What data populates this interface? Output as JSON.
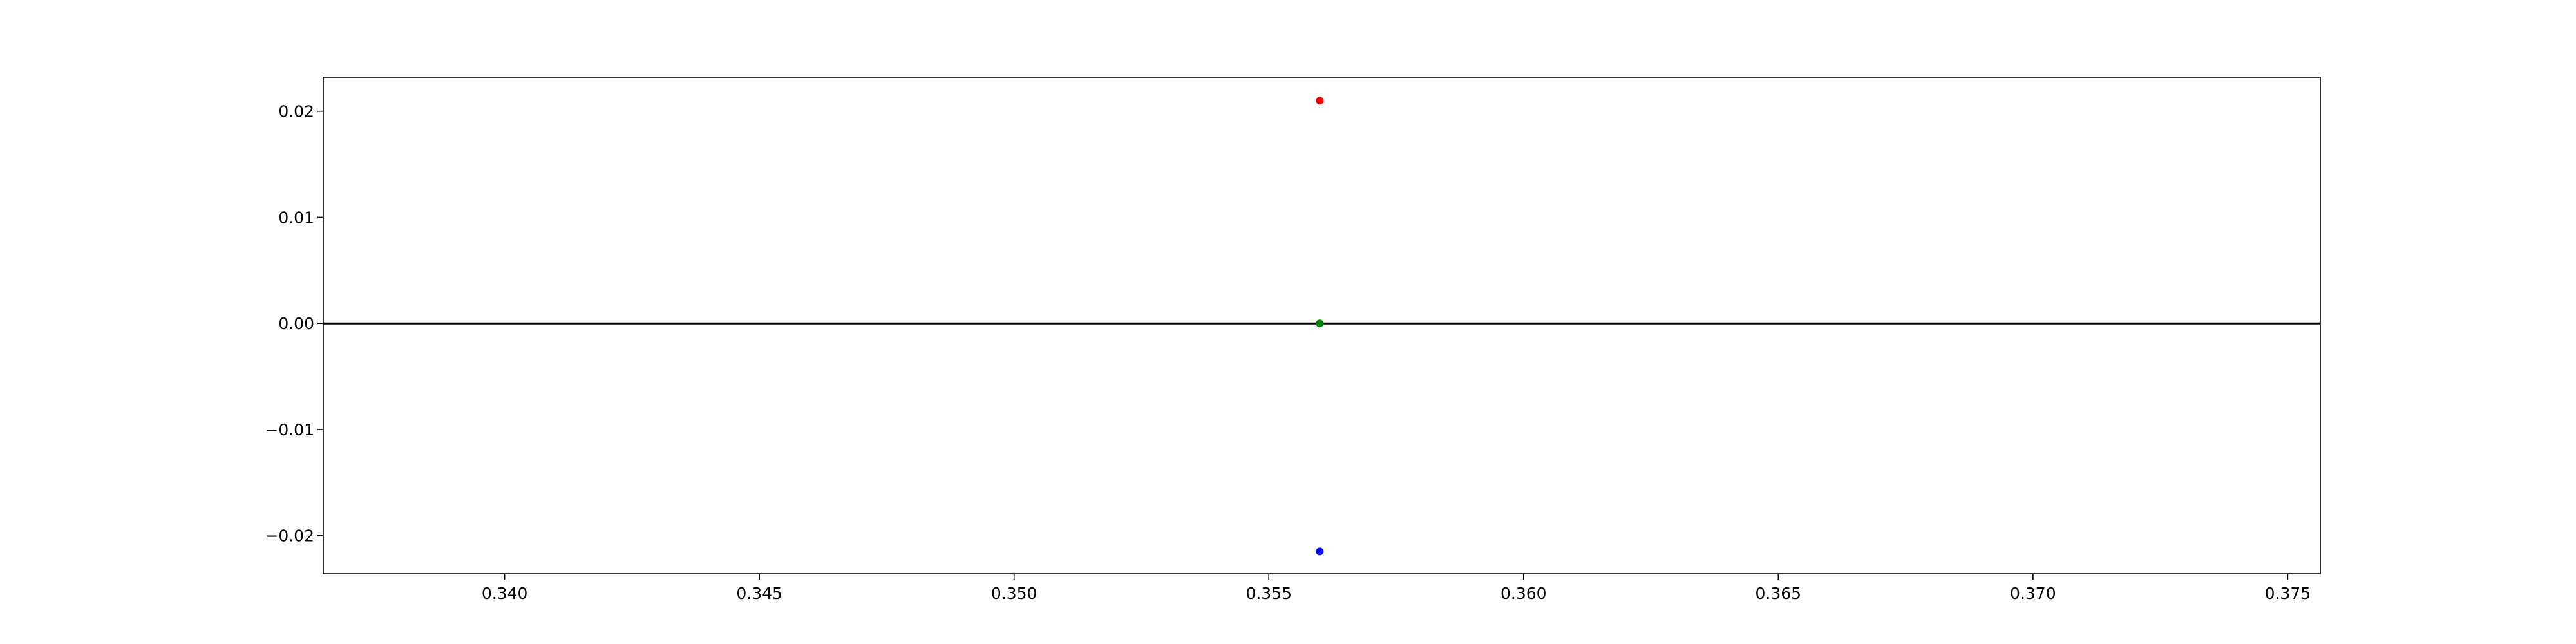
{
  "chart_data": {
    "type": "scatter",
    "title": "",
    "xlabel": "",
    "ylabel": "",
    "xlim": [
      0.33644,
      0.37564
    ],
    "ylim": [
      -0.0236,
      0.0232
    ],
    "grid": false,
    "legend": "none",
    "x_ticks": [
      {
        "value": 0.34,
        "label": "0.340"
      },
      {
        "value": 0.345,
        "label": "0.345"
      },
      {
        "value": 0.35,
        "label": "0.350"
      },
      {
        "value": 0.355,
        "label": "0.355"
      },
      {
        "value": 0.36,
        "label": "0.360"
      },
      {
        "value": 0.365,
        "label": "0.365"
      },
      {
        "value": 0.37,
        "label": "0.370"
      },
      {
        "value": 0.375,
        "label": "0.375"
      }
    ],
    "y_ticks": [
      {
        "value": 0.02,
        "label": "0.02"
      },
      {
        "value": 0.01,
        "label": "0.01"
      },
      {
        "value": 0.0,
        "label": "0.00"
      },
      {
        "value": -0.01,
        "label": "−0.01"
      },
      {
        "value": -0.02,
        "label": "−0.02"
      }
    ],
    "reference_lines": [
      {
        "orientation": "horizontal",
        "y": 0.0,
        "color": "#000000"
      }
    ],
    "points": [
      {
        "x": 0.356,
        "y": 0.021,
        "color": "#ff0000"
      },
      {
        "x": 0.356,
        "y": 0.0,
        "color": "#008000"
      },
      {
        "x": 0.356,
        "y": -0.0215,
        "color": "#0000ff"
      }
    ]
  }
}
